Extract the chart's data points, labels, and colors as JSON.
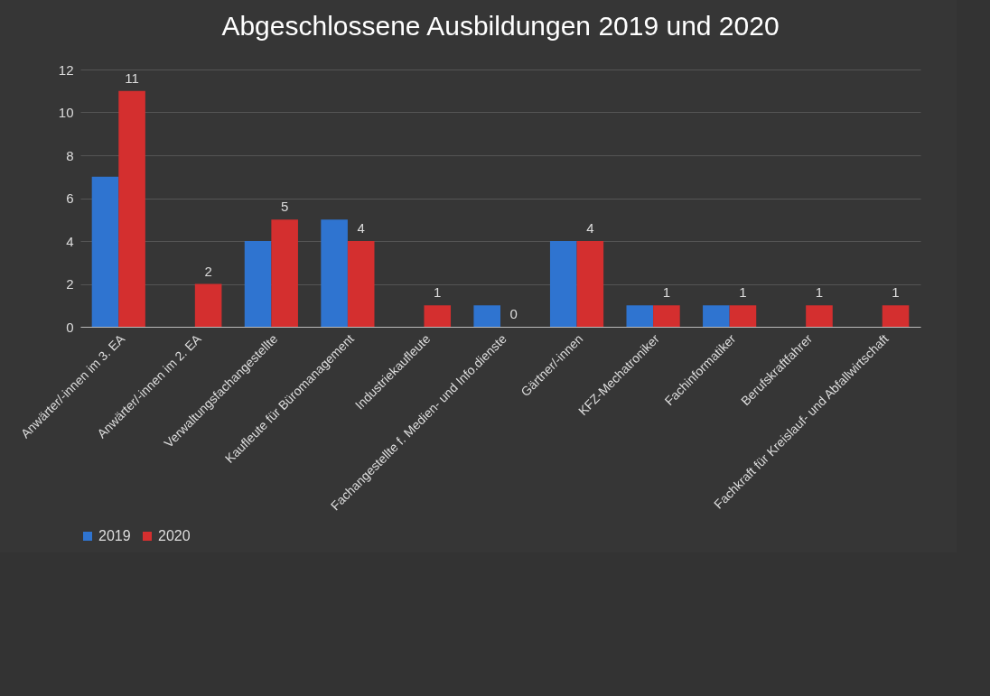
{
  "chart_data": {
    "type": "bar",
    "title": "Abgeschlossene Ausbildungen 2019 und 2020",
    "categories": [
      "Anwärter/-innen im 3. EA",
      "Anwärter/-innen im 2. EA",
      "Verwaltungsfachangestellte",
      "Kaufleute für Büromanagement",
      "Industriekaufleute",
      "Fachangestellte f. Medien- und Info.dienste",
      "Gärtner/-innen",
      "KFZ-Mechatroniker",
      "Fachinformatiker",
      "Berufskraftfahrer",
      "Fachkraft für Kreislauf- und Abfallwirtschaft"
    ],
    "series": [
      {
        "name": "2019",
        "color": "#2f74d0",
        "values": [
          7,
          null,
          4,
          5,
          null,
          1,
          4,
          1,
          1,
          null,
          null
        ]
      },
      {
        "name": "2020",
        "color": "#d42f2f",
        "values": [
          11,
          2,
          5,
          4,
          1,
          0,
          4,
          1,
          1,
          1,
          1
        ],
        "value_labels": [
          "11",
          "2",
          "5",
          "4",
          "1",
          "0",
          "4",
          "1",
          "1",
          "1",
          "1"
        ]
      }
    ],
    "ylim": [
      0,
      12
    ],
    "yticks": [
      0,
      2,
      4,
      6,
      8,
      10,
      12
    ],
    "grid": "y",
    "legend": "bottom"
  }
}
